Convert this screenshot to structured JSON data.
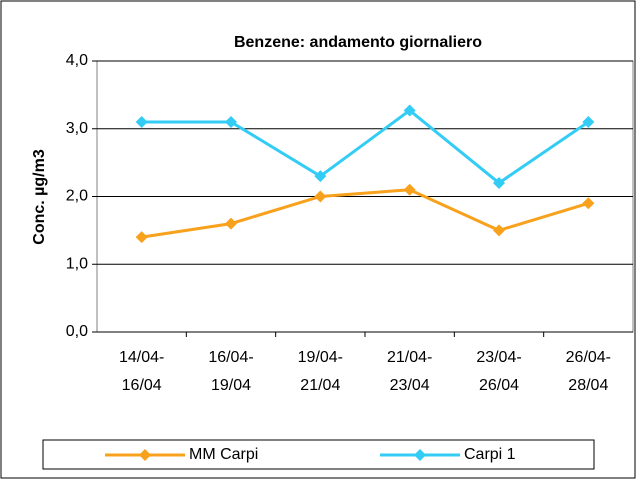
{
  "chart_data": {
    "type": "line",
    "title": "Benzene: andamento giornaliero",
    "y_label": "Conc. µg/m3",
    "categories": [
      [
        "14/04-",
        "16/04"
      ],
      [
        "16/04-",
        "19/04"
      ],
      [
        "19/04-",
        "21/04"
      ],
      [
        "21/04-",
        "23/04"
      ],
      [
        "23/04-",
        "26/04"
      ],
      [
        "26/04-",
        "28/04"
      ]
    ],
    "series": [
      {
        "name": "MM Carpi",
        "color": "#f8a11c",
        "values": [
          1.4,
          1.6,
          2.0,
          2.1,
          1.5,
          1.9
        ]
      },
      {
        "name": "Carpi 1",
        "color": "#33ccf5",
        "values": [
          3.1,
          3.1,
          2.3,
          3.27,
          2.2,
          3.1
        ]
      }
    ],
    "ylim": [
      0,
      4
    ],
    "yticks": [
      {
        "value": 0,
        "label": "0,0"
      },
      {
        "value": 1,
        "label": "1,0"
      },
      {
        "value": 2,
        "label": "2,0"
      },
      {
        "value": 3,
        "label": "3,0"
      },
      {
        "value": 4,
        "label": "4,0"
      }
    ],
    "grid": true,
    "legend": "bottom"
  }
}
